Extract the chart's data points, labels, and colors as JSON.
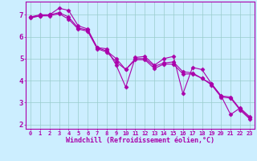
{
  "title": "",
  "xlabel": "Windchill (Refroidissement éolien,°C)",
  "ylabel": "",
  "background_color": "#cceeff",
  "line_color": "#aa00aa",
  "grid_color": "#99cccc",
  "x_values": [
    0,
    1,
    2,
    3,
    4,
    5,
    6,
    7,
    8,
    9,
    10,
    11,
    12,
    13,
    14,
    15,
    16,
    17,
    18,
    19,
    20,
    21,
    22,
    23
  ],
  "x_labels": [
    "0",
    "1",
    "2",
    "3",
    "4",
    "5",
    "6",
    "7",
    "8",
    "9",
    "10",
    "11",
    "12",
    "13",
    "14",
    "15",
    "16",
    "17",
    "18",
    "19",
    "20",
    "21",
    "22",
    "23"
  ],
  "series": [
    [
      6.9,
      7.0,
      7.0,
      7.3,
      7.2,
      6.5,
      6.35,
      5.5,
      5.45,
      4.7,
      3.7,
      5.05,
      5.1,
      4.7,
      5.0,
      5.1,
      3.4,
      4.6,
      4.5,
      3.85,
      3.3,
      2.45,
      2.75,
      2.35
    ],
    [
      6.9,
      6.95,
      7.0,
      7.1,
      6.9,
      6.4,
      6.3,
      5.5,
      5.35,
      5.0,
      4.5,
      5.0,
      5.0,
      4.65,
      4.8,
      4.85,
      4.4,
      4.35,
      4.1,
      3.85,
      3.3,
      3.25,
      2.7,
      2.3
    ],
    [
      6.85,
      6.95,
      6.95,
      7.05,
      6.8,
      6.35,
      6.25,
      5.45,
      5.3,
      4.85,
      4.5,
      4.95,
      4.95,
      4.55,
      4.75,
      4.75,
      4.3,
      4.3,
      4.1,
      3.8,
      3.25,
      3.2,
      2.65,
      2.25
    ]
  ],
  "ylim": [
    1.8,
    7.6
  ],
  "yticks": [
    2,
    3,
    4,
    5,
    6,
    7
  ],
  "xlim": [
    -0.5,
    23.5
  ],
  "marker": "D",
  "markersize": 2.5,
  "linewidth": 0.8
}
